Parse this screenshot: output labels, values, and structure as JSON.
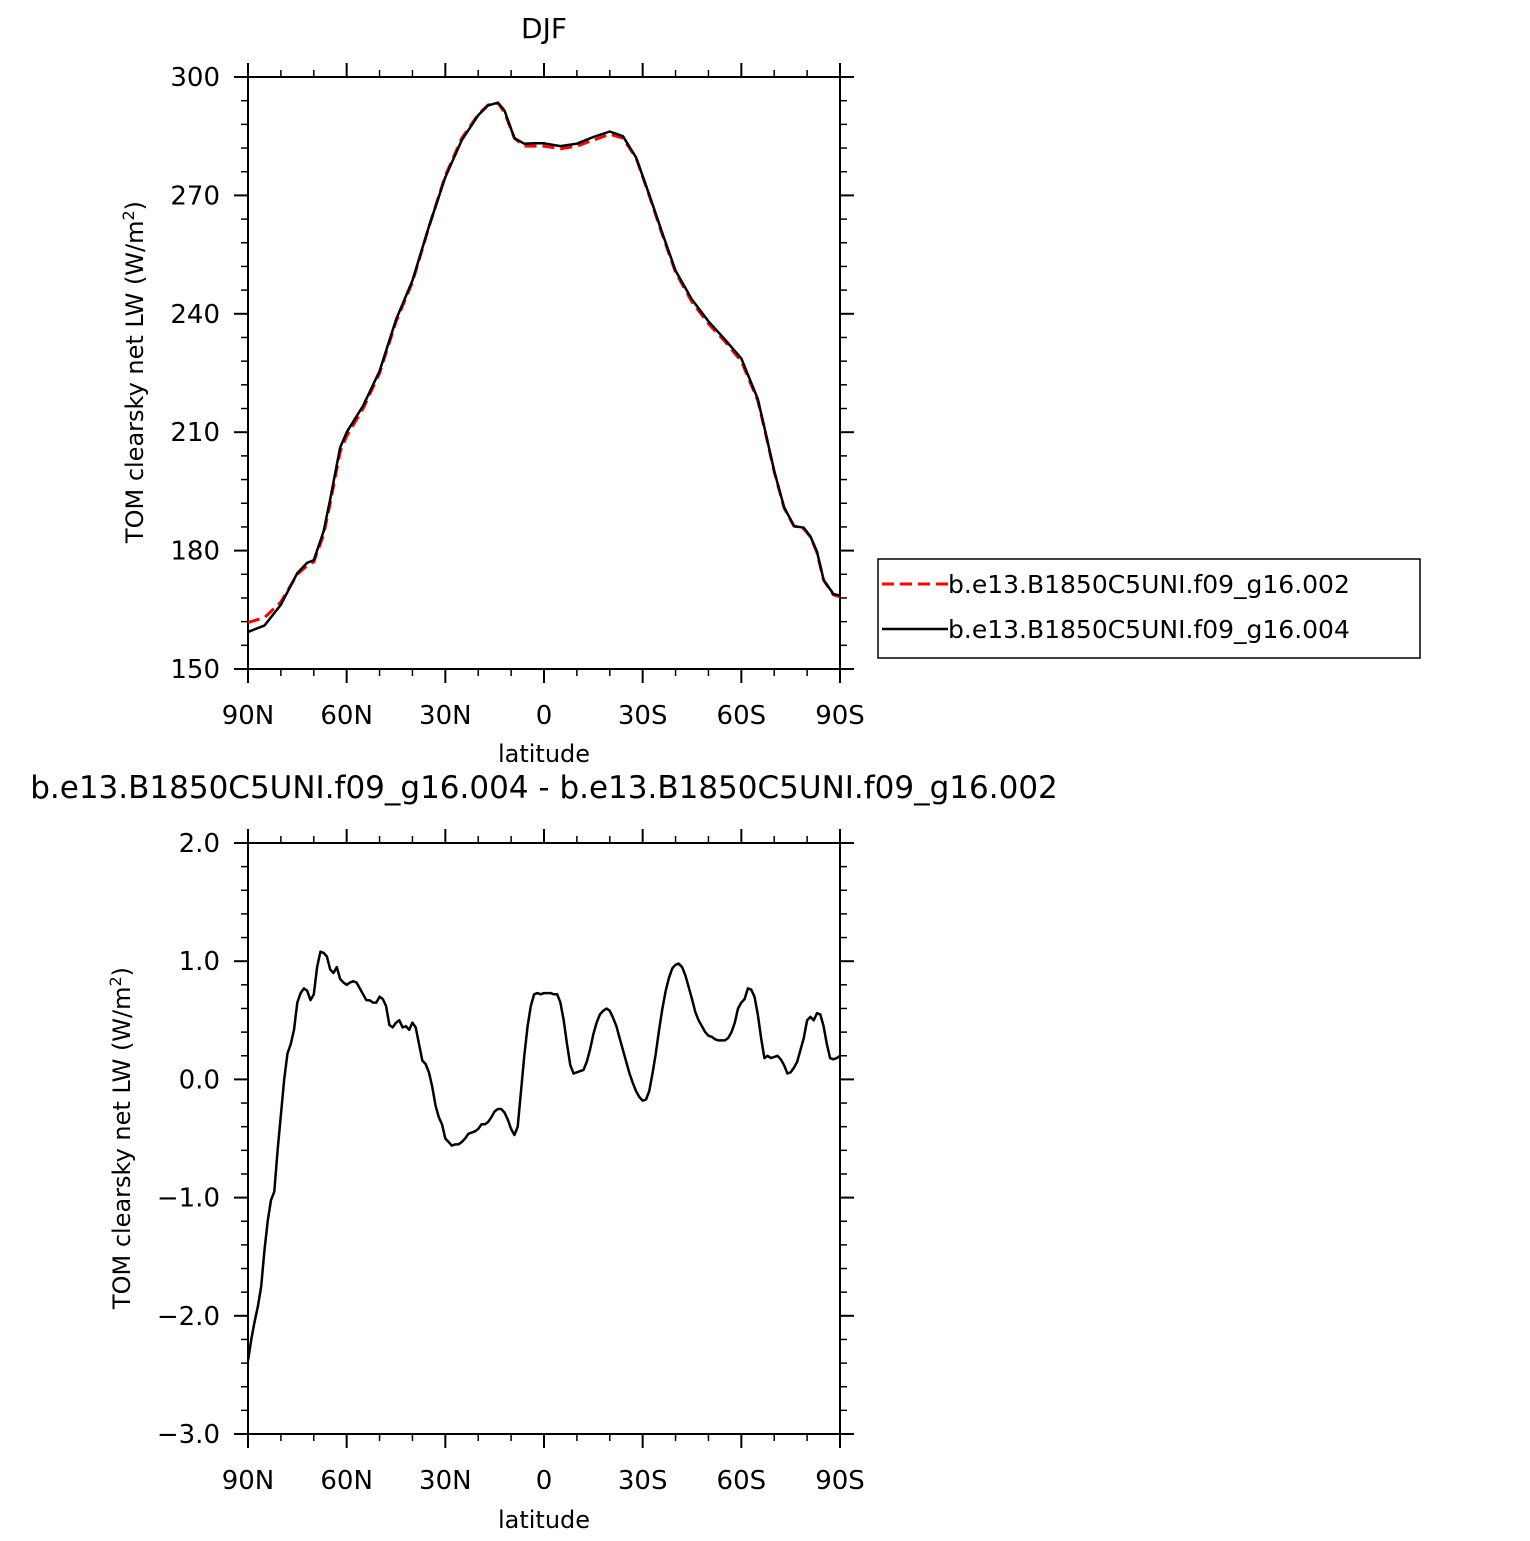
{
  "chart_data": [
    {
      "type": "line",
      "title": "DJF",
      "xlabel": "latitude",
      "ylabel": "TOM clearsky net LW (W/m²)",
      "ylabel_parts": {
        "base": "TOM clearsky net LW (W/m",
        "sup": "2",
        "tail": ")"
      },
      "xlim": [
        90,
        -90
      ],
      "ylim": [
        150,
        300
      ],
      "x_ticks": [
        90,
        60,
        30,
        0,
        -30,
        -60,
        -90
      ],
      "x_tick_labels": [
        "90N",
        "60N",
        "30N",
        "0",
        "30S",
        "60S",
        "90S"
      ],
      "y_ticks": [
        150,
        180,
        210,
        240,
        270,
        300
      ],
      "y_tick_labels": [
        "150",
        "180",
        "210",
        "240",
        "270",
        "300"
      ],
      "legend_position": "right",
      "x": [
        90,
        85,
        80,
        75,
        72,
        70,
        67,
        65,
        62,
        60,
        55,
        50,
        45,
        40,
        35,
        30,
        25,
        20,
        17,
        14,
        12,
        9,
        6,
        3,
        0,
        -5,
        -10,
        -15,
        -20,
        -24,
        -28,
        -32,
        -36,
        -40,
        -45,
        -50,
        -55,
        -60,
        -65,
        -67,
        -70,
        -73,
        -76,
        -79,
        -81,
        -83,
        -85,
        -88,
        -90
      ],
      "series": [
        {
          "name": "b.e13.B1850C5UNI.f09_g16.002",
          "color": "#ff0000",
          "dash": "dashed",
          "values": [
            161.8,
            163.0,
            167.0,
            174.0,
            176.2,
            177.2,
            184.0,
            192.0,
            205.0,
            209.0,
            216.0,
            225.0,
            238.0,
            248.0,
            262.0,
            275.0,
            284.5,
            290.5,
            292.9,
            293.4,
            291.0,
            284.5,
            282.5,
            282.5,
            282.5,
            281.8,
            282.5,
            284.0,
            285.5,
            284.5,
            279.5,
            270.0,
            260.0,
            250.5,
            243.0,
            237.5,
            233.0,
            228.0,
            218.0,
            211.0,
            200.0,
            190.8,
            186.2,
            185.5,
            183.5,
            179.5,
            172.5,
            168.8,
            168.3
          ]
        },
        {
          "name": "b.e13.B1850C5UNI.f09_g16.004",
          "color": "#000000",
          "dash": "solid",
          "values": [
            159.4,
            161.0,
            166.3,
            174.3,
            176.9,
            177.6,
            184.9,
            193.0,
            206.1,
            210.0,
            216.7,
            225.5,
            238.5,
            248.4,
            262.1,
            274.6,
            284.0,
            290.3,
            292.8,
            293.5,
            291.5,
            284.5,
            283.1,
            283.2,
            283.2,
            282.5,
            283.1,
            284.8,
            286.2,
            285.0,
            279.6,
            270.2,
            260.4,
            250.9,
            243.6,
            238.1,
            233.5,
            228.7,
            218.4,
            211.2,
            200.2,
            191.0,
            186.2,
            185.8,
            183.6,
            179.7,
            172.6,
            169.0,
            168.6
          ]
        }
      ]
    },
    {
      "type": "line",
      "title": "b.e13.B1850C5UNI.f09_g16.004 - b.e13.B1850C5UNI.f09_g16.002",
      "xlabel": "latitude",
      "ylabel": "TOM clearsky net LW (W/m²)",
      "ylabel_parts": {
        "base": "TOM clearsky net LW (W/m",
        "sup": "2",
        "tail": ")"
      },
      "xlim": [
        90,
        -90
      ],
      "ylim": [
        -3.0,
        2.0
      ],
      "x_ticks": [
        90,
        60,
        30,
        0,
        -30,
        -60,
        -90
      ],
      "x_tick_labels": [
        "90N",
        "60N",
        "30N",
        "0",
        "30S",
        "60S",
        "90S"
      ],
      "y_ticks": [
        -3.0,
        -2.0,
        -1.0,
        0.0,
        1.0,
        2.0
      ],
      "y_tick_labels": [
        "−3.0",
        "−2.0",
        "−1.0",
        "0.0",
        "1.0",
        "2.0"
      ],
      "x": [
        90,
        89,
        88,
        87,
        86,
        85,
        84,
        83,
        82,
        81,
        80,
        79,
        78,
        77,
        76,
        75,
        74,
        73,
        72,
        71,
        70,
        69,
        68,
        67,
        66,
        65,
        64,
        63,
        62,
        61,
        60,
        59,
        58,
        57,
        56,
        55,
        54,
        53,
        52,
        51,
        50,
        49,
        48,
        47,
        46,
        45,
        44,
        43,
        42,
        41,
        40,
        39,
        38,
        37,
        36,
        35,
        34,
        33,
        32,
        31,
        30,
        29,
        28,
        27,
        26,
        25,
        24,
        23,
        22,
        21,
        20,
        19,
        18,
        17,
        16,
        15,
        14,
        13,
        12,
        11,
        10,
        9,
        8,
        7,
        6,
        5,
        4,
        3,
        2,
        1,
        0,
        -1,
        -2,
        -3,
        -4,
        -5,
        -6,
        -7,
        -8,
        -9,
        -10,
        -11,
        -12,
        -13,
        -14,
        -15,
        -16,
        -17,
        -18,
        -19,
        -20,
        -21,
        -22,
        -23,
        -24,
        -25,
        -26,
        -27,
        -28,
        -29,
        -30,
        -31,
        -32,
        -33,
        -34,
        -35,
        -36,
        -37,
        -38,
        -39,
        -40,
        -41,
        -42,
        -43,
        -44,
        -45,
        -46,
        -47,
        -48,
        -49,
        -50,
        -51,
        -52,
        -53,
        -54,
        -55,
        -56,
        -57,
        -58,
        -59,
        -60,
        -61,
        -62,
        -63,
        -64,
        -65,
        -66,
        -67,
        -68,
        -69,
        -70,
        -71,
        -72,
        -73,
        -74,
        -75,
        -76,
        -77,
        -78,
        -79,
        -80,
        -81,
        -82,
        -83,
        -84,
        -85,
        -86,
        -87,
        -88,
        -89,
        -90
      ],
      "series": [
        {
          "color": "#000000",
          "values": [
            -2.38,
            -2.2,
            -2.05,
            -1.92,
            -1.75,
            -1.45,
            -1.2,
            -1.02,
            -0.95,
            -0.6,
            -0.3,
            0.0,
            0.22,
            0.3,
            0.42,
            0.65,
            0.73,
            0.77,
            0.75,
            0.67,
            0.72,
            0.95,
            1.08,
            1.07,
            1.04,
            0.93,
            0.9,
            0.95,
            0.85,
            0.82,
            0.8,
            0.82,
            0.83,
            0.82,
            0.77,
            0.72,
            0.67,
            0.67,
            0.65,
            0.65,
            0.7,
            0.68,
            0.62,
            0.46,
            0.44,
            0.48,
            0.5,
            0.44,
            0.45,
            0.42,
            0.48,
            0.44,
            0.3,
            0.16,
            0.13,
            0.06,
            -0.06,
            -0.22,
            -0.32,
            -0.38,
            -0.5,
            -0.53,
            -0.56,
            -0.55,
            -0.55,
            -0.53,
            -0.5,
            -0.46,
            -0.45,
            -0.44,
            -0.42,
            -0.38,
            -0.38,
            -0.36,
            -0.32,
            -0.27,
            -0.25,
            -0.25,
            -0.28,
            -0.34,
            -0.42,
            -0.47,
            -0.4,
            -0.1,
            0.2,
            0.45,
            0.62,
            0.72,
            0.73,
            0.72,
            0.73,
            0.73,
            0.73,
            0.72,
            0.72,
            0.65,
            0.5,
            0.3,
            0.12,
            0.05,
            0.06,
            0.07,
            0.08,
            0.15,
            0.25,
            0.38,
            0.48,
            0.55,
            0.58,
            0.6,
            0.58,
            0.52,
            0.45,
            0.35,
            0.25,
            0.15,
            0.05,
            -0.03,
            -0.1,
            -0.15,
            -0.18,
            -0.17,
            -0.1,
            0.05,
            0.22,
            0.42,
            0.6,
            0.75,
            0.86,
            0.94,
            0.97,
            0.98,
            0.95,
            0.88,
            0.78,
            0.68,
            0.57,
            0.5,
            0.45,
            0.4,
            0.37,
            0.36,
            0.34,
            0.33,
            0.33,
            0.33,
            0.35,
            0.4,
            0.48,
            0.6,
            0.65,
            0.68,
            0.77,
            0.76,
            0.7,
            0.55,
            0.35,
            0.18,
            0.2,
            0.18,
            0.19,
            0.2,
            0.17,
            0.12,
            0.05,
            0.06,
            0.1,
            0.15,
            0.25,
            0.35,
            0.5,
            0.53,
            0.5,
            0.56,
            0.55,
            0.45,
            0.3,
            0.18,
            0.17,
            0.18,
            0.2
          ]
        }
      ]
    }
  ]
}
